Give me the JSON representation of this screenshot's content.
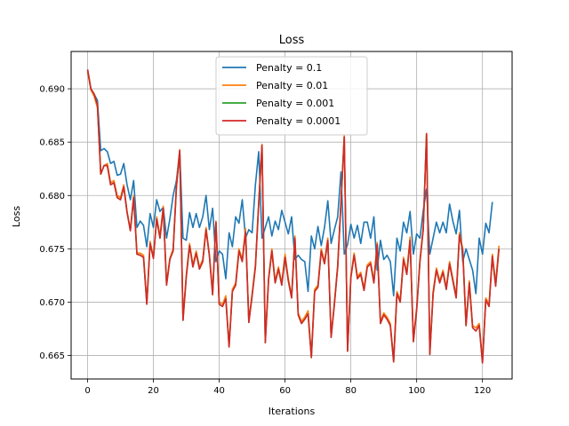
{
  "chart_data": {
    "type": "line",
    "title": "Loss",
    "xlabel": "Iterations",
    "ylabel": "Loss",
    "xlim": [
      -5,
      129
    ],
    "ylim": [
      0.6628,
      0.6935
    ],
    "xticks": [
      0,
      20,
      40,
      60,
      80,
      100,
      120
    ],
    "yticks": [
      0.665,
      0.67,
      0.675,
      0.68,
      0.685,
      0.69
    ],
    "ytick_labels": [
      "0.665",
      "0.670",
      "0.675",
      "0.680",
      "0.685",
      "0.690"
    ],
    "grid": true,
    "legend_position": "upper-center",
    "series": [
      {
        "name": "Penalty = 0.1",
        "color": "#1f77b4",
        "values": [
          0.6918,
          0.69,
          0.6895,
          0.6889,
          0.6842,
          0.6844,
          0.6841,
          0.683,
          0.6832,
          0.6819,
          0.682,
          0.683,
          0.681,
          0.6796,
          0.6814,
          0.677,
          0.6776,
          0.6772,
          0.6752,
          0.6783,
          0.677,
          0.6796,
          0.6785,
          0.6789,
          0.676,
          0.6778,
          0.68,
          0.6814,
          0.6842,
          0.676,
          0.6758,
          0.6784,
          0.677,
          0.6783,
          0.677,
          0.678,
          0.68,
          0.6768,
          0.6788,
          0.6738,
          0.6748,
          0.6745,
          0.6722,
          0.6765,
          0.6752,
          0.678,
          0.6774,
          0.6796,
          0.676,
          0.6768,
          0.6765,
          0.681,
          0.6841,
          0.676,
          0.677,
          0.678,
          0.6762,
          0.6776,
          0.6768,
          0.6786,
          0.6775,
          0.6764,
          0.678,
          0.674,
          0.6744,
          0.674,
          0.6738,
          0.671,
          0.6762,
          0.675,
          0.6771,
          0.6753,
          0.677,
          0.6795,
          0.6755,
          0.6768,
          0.678,
          0.6822,
          0.6745,
          0.6754,
          0.6773,
          0.676,
          0.6772,
          0.6755,
          0.6775,
          0.6775,
          0.676,
          0.678,
          0.673,
          0.6758,
          0.674,
          0.6744,
          0.6738,
          0.6706,
          0.676,
          0.6748,
          0.6775,
          0.6765,
          0.6785,
          0.6745,
          0.6764,
          0.676,
          0.6786,
          0.6806,
          0.6745,
          0.676,
          0.6775,
          0.6765,
          0.6775,
          0.6765,
          0.6792,
          0.6776,
          0.6764,
          0.6786,
          0.6738,
          0.675,
          0.674,
          0.673,
          0.6708,
          0.676,
          0.6745,
          0.6774,
          0.6765,
          0.6794
        ]
      },
      {
        "name": "Penalty = 0.01",
        "color": "#ff7f0e",
        "values": [
          0.6916,
          0.6899,
          0.6893,
          0.6882,
          0.682,
          0.6828,
          0.683,
          0.6812,
          0.6814,
          0.68,
          0.6798,
          0.681,
          0.6785,
          0.6768,
          0.68,
          0.6746,
          0.6746,
          0.6744,
          0.67,
          0.6757,
          0.6742,
          0.678,
          0.6762,
          0.679,
          0.6718,
          0.6741,
          0.675,
          0.681,
          0.6843,
          0.6685,
          0.6726,
          0.6755,
          0.6735,
          0.6748,
          0.6733,
          0.674,
          0.677,
          0.6745,
          0.671,
          0.6776,
          0.67,
          0.6698,
          0.6706,
          0.666,
          0.6712,
          0.6718,
          0.675,
          0.674,
          0.6769,
          0.6683,
          0.6708,
          0.6735,
          0.6794,
          0.6848,
          0.6665,
          0.6723,
          0.675,
          0.672,
          0.6733,
          0.6718,
          0.6745,
          0.6722,
          0.6706,
          0.6762,
          0.669,
          0.6682,
          0.6686,
          0.6692,
          0.665,
          0.6712,
          0.6716,
          0.675,
          0.6738,
          0.676,
          0.6668,
          0.67,
          0.6735,
          0.6795,
          0.6856,
          0.6655,
          0.6725,
          0.6746,
          0.6724,
          0.6728,
          0.6713,
          0.6735,
          0.6738,
          0.672,
          0.6756,
          0.6682,
          0.669,
          0.6686,
          0.668,
          0.6646,
          0.671,
          0.6702,
          0.6742,
          0.6728,
          0.6761,
          0.6665,
          0.6695,
          0.674,
          0.677,
          0.6858,
          0.6653,
          0.671,
          0.6732,
          0.672,
          0.673,
          0.6714,
          0.6738,
          0.6722,
          0.6706,
          0.6765,
          0.675,
          0.668,
          0.672,
          0.6678,
          0.6676,
          0.668,
          0.6645,
          0.6704,
          0.6698,
          0.6745,
          0.6718,
          0.6753
        ]
      },
      {
        "name": "Penalty = 0.001",
        "color": "#2ca02c",
        "values": [
          0.6918,
          0.69,
          0.6895,
          0.6885,
          0.682,
          0.6828,
          0.6828,
          0.681,
          0.6812,
          0.6798,
          0.6796,
          0.6808,
          0.6784,
          0.6767,
          0.6798,
          0.6745,
          0.6744,
          0.6742,
          0.6698,
          0.6755,
          0.6741,
          0.6778,
          0.676,
          0.6788,
          0.6716,
          0.674,
          0.6748,
          0.6808,
          0.6842,
          0.6683,
          0.6724,
          0.6753,
          0.6733,
          0.6746,
          0.6731,
          0.6738,
          0.6768,
          0.6744,
          0.6707,
          0.6775,
          0.6698,
          0.6696,
          0.6703,
          0.6658,
          0.671,
          0.6716,
          0.6748,
          0.6738,
          0.6766,
          0.6681,
          0.6706,
          0.6733,
          0.6792,
          0.6847,
          0.6662,
          0.6721,
          0.6748,
          0.6718,
          0.6731,
          0.6716,
          0.6742,
          0.672,
          0.6704,
          0.676,
          0.6688,
          0.668,
          0.6684,
          0.6689,
          0.6648,
          0.671,
          0.6714,
          0.6748,
          0.6736,
          0.6758,
          0.6667,
          0.6698,
          0.6733,
          0.6793,
          0.6855,
          0.6654,
          0.6723,
          0.6744,
          0.6722,
          0.6726,
          0.6711,
          0.6733,
          0.6736,
          0.6718,
          0.6754,
          0.668,
          0.6688,
          0.6684,
          0.6678,
          0.6644,
          0.6708,
          0.67,
          0.674,
          0.6726,
          0.6758,
          0.6663,
          0.6693,
          0.6738,
          0.6768,
          0.6858,
          0.6651,
          0.6708,
          0.673,
          0.6718,
          0.6728,
          0.6712,
          0.6736,
          0.672,
          0.6704,
          0.6763,
          0.6748,
          0.6678,
          0.6718,
          0.6676,
          0.6673,
          0.6678,
          0.6643,
          0.6702,
          0.6696,
          0.6743,
          0.6715,
          0.675
        ]
      },
      {
        "name": "Penalty = 0.0001",
        "color": "#d62728",
        "values": [
          0.6918,
          0.69,
          0.6895,
          0.6885,
          0.682,
          0.6828,
          0.6828,
          0.681,
          0.6812,
          0.6798,
          0.6796,
          0.6808,
          0.6784,
          0.6767,
          0.6798,
          0.6745,
          0.6744,
          0.6742,
          0.6698,
          0.6755,
          0.6741,
          0.6778,
          0.676,
          0.6788,
          0.6716,
          0.674,
          0.6748,
          0.6808,
          0.6842,
          0.6683,
          0.6724,
          0.6753,
          0.6733,
          0.6746,
          0.6731,
          0.6738,
          0.6768,
          0.6744,
          0.6707,
          0.6775,
          0.6698,
          0.6696,
          0.6703,
          0.6658,
          0.671,
          0.6716,
          0.6748,
          0.6738,
          0.6766,
          0.6681,
          0.6706,
          0.6733,
          0.6792,
          0.6847,
          0.6662,
          0.6721,
          0.6748,
          0.6718,
          0.6731,
          0.6716,
          0.6742,
          0.672,
          0.6704,
          0.676,
          0.6688,
          0.668,
          0.6684,
          0.6689,
          0.6648,
          0.671,
          0.6714,
          0.6748,
          0.6736,
          0.6758,
          0.6667,
          0.6698,
          0.6733,
          0.6793,
          0.6855,
          0.6654,
          0.6723,
          0.6744,
          0.6722,
          0.6726,
          0.6711,
          0.6733,
          0.6736,
          0.6718,
          0.6754,
          0.668,
          0.6688,
          0.6684,
          0.6678,
          0.6644,
          0.6708,
          0.67,
          0.674,
          0.6726,
          0.6758,
          0.6663,
          0.6693,
          0.6738,
          0.6768,
          0.6858,
          0.6651,
          0.6708,
          0.673,
          0.6718,
          0.6728,
          0.6712,
          0.6736,
          0.672,
          0.6704,
          0.6763,
          0.6748,
          0.6678,
          0.6718,
          0.6676,
          0.6673,
          0.6678,
          0.6643,
          0.6702,
          0.6696,
          0.6743,
          0.6715,
          0.675
        ]
      }
    ]
  }
}
